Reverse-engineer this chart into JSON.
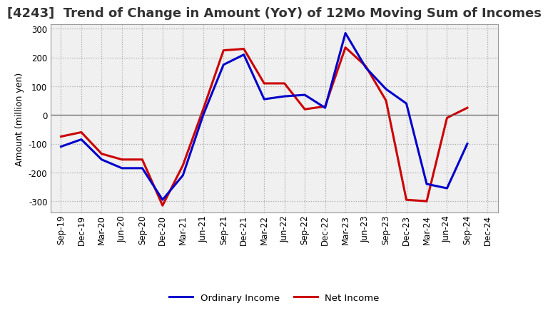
{
  "title": "[4243]  Trend of Change in Amount (YoY) of 12Mo Moving Sum of Incomes",
  "ylabel": "Amount (million yen)",
  "x_labels": [
    "Sep-19",
    "Dec-19",
    "Mar-20",
    "Jun-20",
    "Sep-20",
    "Dec-20",
    "Mar-21",
    "Jun-21",
    "Sep-21",
    "Dec-21",
    "Mar-22",
    "Jun-22",
    "Sep-22",
    "Dec-22",
    "Mar-23",
    "Jun-23",
    "Sep-23",
    "Dec-23",
    "Mar-24",
    "Jun-24",
    "Sep-24",
    "Dec-24"
  ],
  "ordinary_income": [
    -110,
    -85,
    -155,
    -185,
    -185,
    -295,
    -210,
    0,
    175,
    210,
    55,
    65,
    70,
    25,
    285,
    165,
    90,
    40,
    -240,
    -255,
    -100,
    null
  ],
  "net_income": [
    -75,
    -60,
    -135,
    -155,
    -155,
    -315,
    -175,
    20,
    225,
    230,
    110,
    110,
    20,
    30,
    235,
    170,
    50,
    -295,
    -300,
    -10,
    25,
    null
  ],
  "ordinary_color": "#0000cc",
  "net_color": "#cc0000",
  "ylim": [
    -340,
    315
  ],
  "yticks": [
    -300,
    -200,
    -100,
    0,
    100,
    200,
    300
  ],
  "background_color": "#ffffff",
  "plot_bg_color": "#f0f0f0",
  "grid_color": "#aaaaaa",
  "legend_labels": [
    "Ordinary Income",
    "Net Income"
  ],
  "title_fontsize": 13,
  "axis_fontsize": 9,
  "tick_fontsize": 8.5,
  "line_width": 2.2
}
